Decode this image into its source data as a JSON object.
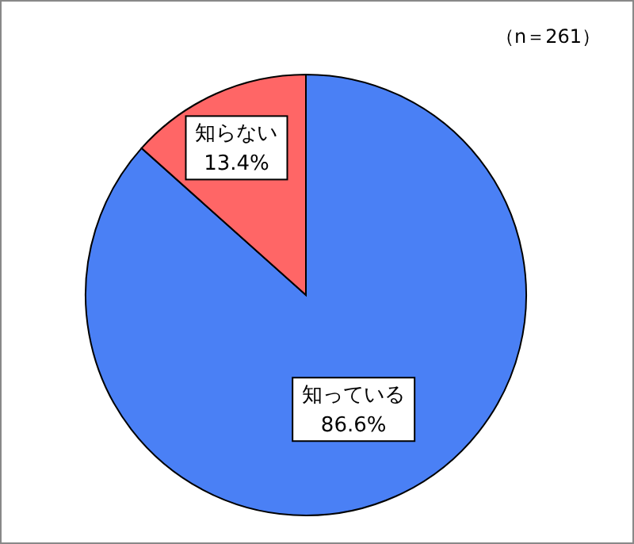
{
  "chart_data": {
    "type": "pie",
    "categories": [
      "知っている",
      "知らない"
    ],
    "values": [
      86.6,
      13.4
    ],
    "value_labels": [
      "86.6%",
      "13.4%"
    ],
    "colors": [
      "#4a80f5",
      "#ff6666"
    ],
    "annotations": [
      "（n＝261）"
    ],
    "legend": false
  }
}
